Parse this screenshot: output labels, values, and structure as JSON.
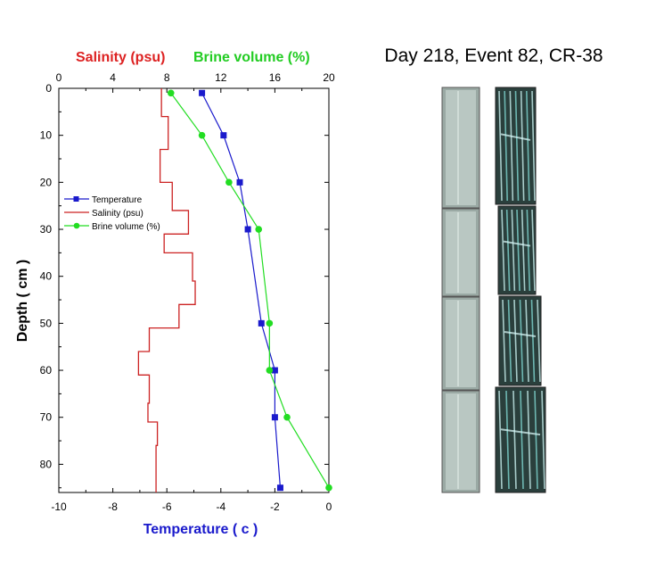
{
  "chart_data": {
    "type": "line",
    "title": "Day 218, Event 82, CR-38",
    "xlabel": "Temperature ( c )",
    "ylabel": "Depth ( cm )",
    "xlim": [
      -10,
      0
    ],
    "ylim": [
      0,
      86
    ],
    "y_inverted": true,
    "bottom_ticks": [
      -10,
      -8,
      -6,
      -4,
      -2,
      0
    ],
    "y_ticks": [
      0,
      10,
      20,
      30,
      40,
      50,
      60,
      70,
      80
    ],
    "top_axis": {
      "label_salinity": "Salinity (psu)",
      "label_brine": "Brine volume (%)",
      "xlim": [
        0,
        20
      ],
      "ticks": [
        0,
        4,
        8,
        12,
        16,
        20
      ]
    },
    "legend_position": "left",
    "series": [
      {
        "name": "Temperature",
        "axis": "bottom",
        "color": "#1a1acc",
        "marker": "square",
        "points": [
          [
            -4.7,
            1
          ],
          [
            -3.9,
            10
          ],
          [
            -3.3,
            20
          ],
          [
            -3.0,
            30
          ],
          [
            -2.5,
            50
          ],
          [
            -2.0,
            60
          ],
          [
            -2.0,
            70
          ],
          [
            -1.8,
            85
          ]
        ]
      },
      {
        "name": "Salinity (psu)",
        "axis": "top",
        "color": "#cc2222",
        "style": "step",
        "steps": [
          {
            "top": 0,
            "bottom": 6,
            "value": 7.6
          },
          {
            "top": 6,
            "bottom": 13,
            "value": 8.1
          },
          {
            "top": 13,
            "bottom": 20,
            "value": 7.5
          },
          {
            "top": 20,
            "bottom": 26,
            "value": 8.4
          },
          {
            "top": 26,
            "bottom": 31,
            "value": 9.6
          },
          {
            "top": 31,
            "bottom": 35,
            "value": 7.8
          },
          {
            "top": 35,
            "bottom": 41,
            "value": 9.9
          },
          {
            "top": 41,
            "bottom": 46,
            "value": 10.1
          },
          {
            "top": 46,
            "bottom": 51,
            "value": 8.9
          },
          {
            "top": 51,
            "bottom": 56,
            "value": 6.7
          },
          {
            "top": 56,
            "bottom": 61,
            "value": 5.9
          },
          {
            "top": 61,
            "bottom": 67,
            "value": 6.7
          },
          {
            "top": 67,
            "bottom": 71,
            "value": 6.6
          },
          {
            "top": 71,
            "bottom": 76,
            "value": 7.3
          },
          {
            "top": 76,
            "bottom": 86,
            "value": 7.2
          }
        ]
      },
      {
        "name": "Brine volume (%)",
        "axis": "top",
        "color": "#22dd22",
        "marker": "circle",
        "points": [
          [
            8.3,
            1
          ],
          [
            10.6,
            10
          ],
          [
            12.6,
            20
          ],
          [
            14.8,
            30
          ],
          [
            15.6,
            50
          ],
          [
            15.6,
            60
          ],
          [
            16.9,
            70
          ],
          [
            20.0,
            85
          ]
        ]
      }
    ],
    "core_images": {
      "column1_panels": 4,
      "column2_panels": 4,
      "column1_color": "#9aa9a4",
      "column2_color": "#2a3f3c"
    }
  }
}
